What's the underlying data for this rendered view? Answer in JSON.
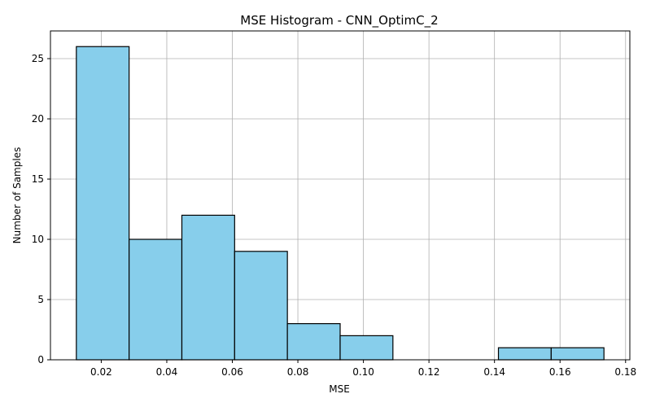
{
  "chart_data": {
    "type": "bar",
    "subtype": "histogram",
    "title": "MSE Histogram - CNN_OptimC_2",
    "xlabel": "MSE",
    "ylabel": "Number of Samples",
    "bin_edges": [
      0.0124,
      0.0285,
      0.0446,
      0.0607,
      0.0768,
      0.0929,
      0.109,
      0.1251,
      0.1412,
      0.1573,
      0.1734
    ],
    "values": [
      26,
      10,
      12,
      9,
      3,
      2,
      0,
      0,
      1,
      1
    ],
    "xlim": [
      0.0045,
      0.1813
    ],
    "ylim": [
      0,
      27.3
    ],
    "xticks": [
      0.02,
      0.04,
      0.06,
      0.08,
      0.1,
      0.12,
      0.14,
      0.16,
      0.18
    ],
    "xtick_labels": [
      "0.02",
      "0.04",
      "0.06",
      "0.08",
      "0.10",
      "0.12",
      "0.14",
      "0.16",
      "0.18"
    ],
    "yticks": [
      0,
      5,
      10,
      15,
      20,
      25
    ],
    "ytick_labels": [
      "0",
      "5",
      "10",
      "15",
      "20",
      "25"
    ],
    "grid": true,
    "bar_color": "#87ceeb",
    "bar_edge_color": "#000000",
    "grid_color": "#b0b0b0"
  }
}
